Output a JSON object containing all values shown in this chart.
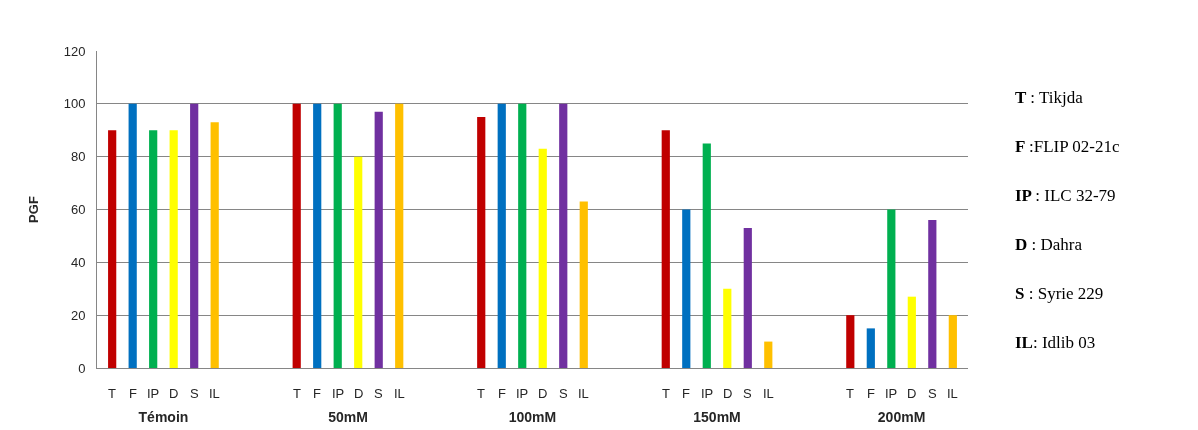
{
  "chart_data": {
    "type": "bar",
    "ylabel": "PGF",
    "categories": [
      "Témoin",
      "50mM",
      "100mM",
      "150mM",
      "200mM"
    ],
    "series": [
      {
        "name": "T",
        "color": "#c00000",
        "values": [
          90,
          100,
          95,
          90,
          20
        ]
      },
      {
        "name": "F",
        "color": "#0070c0",
        "values": [
          100,
          100,
          100,
          60,
          15
        ]
      },
      {
        "name": "IP",
        "color": "#00b050",
        "values": [
          90,
          100,
          100,
          85,
          60
        ]
      },
      {
        "name": "D",
        "color": "#ffff00",
        "values": [
          90,
          80,
          83,
          30,
          27
        ]
      },
      {
        "name": "S",
        "color": "#7030a0",
        "values": [
          100,
          97,
          100,
          53,
          56
        ]
      },
      {
        "name": "IL",
        "color": "#ffc000",
        "values": [
          93,
          100,
          63,
          10,
          20
        ]
      }
    ],
    "ylim": [
      0,
      120
    ],
    "yticks": [
      0,
      20,
      40,
      60,
      80,
      100,
      120
    ],
    "grid": "y",
    "legend": false,
    "annotations": [
      "T : Tikjda",
      "F :FLIP 02-21c",
      "IP : ILC 32-79",
      "D : Dahra",
      "S : Syrie 229",
      "IL: Idlib 03"
    ]
  }
}
